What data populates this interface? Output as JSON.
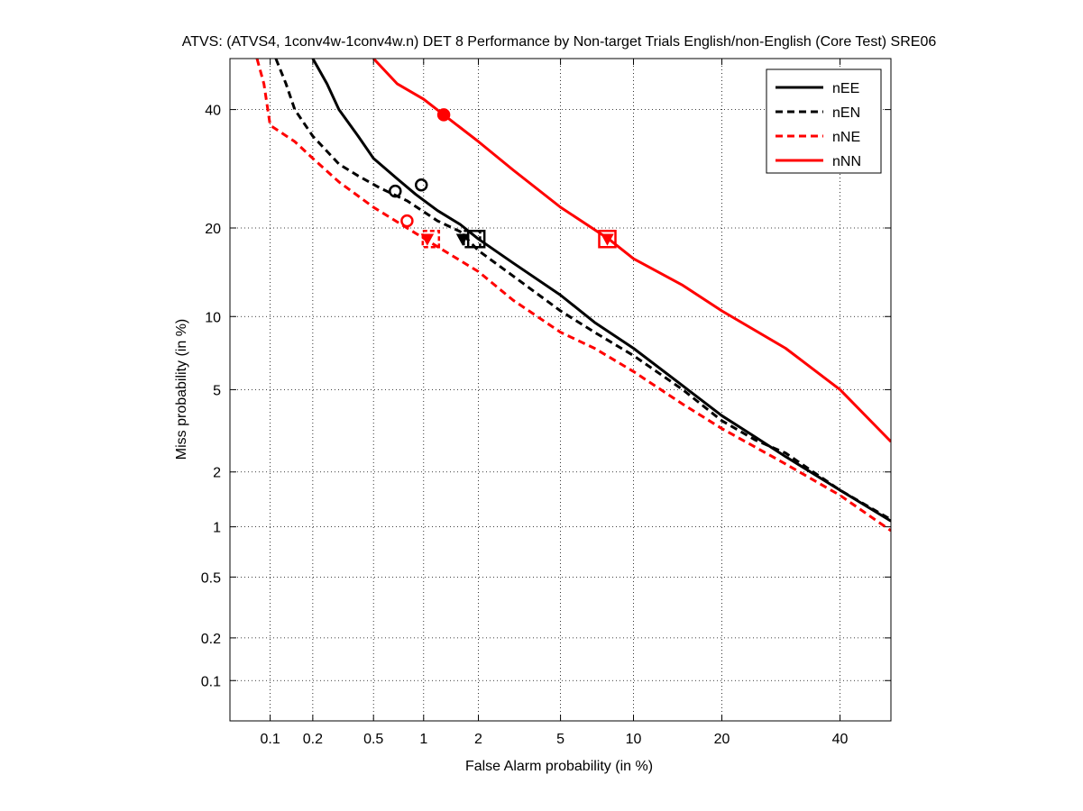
{
  "chart_data": {
    "type": "line",
    "scale": "probit",
    "title": "ATVS: (ATVS4, 1conv4w-1conv4w.n) DET 8 Performance by Non-target Trials English/non-English (Core Test) SRE06",
    "xlabel": "False Alarm probability (in %)",
    "ylabel": "Miss probability (in %)",
    "xlim": [
      0.05,
      50
    ],
    "ylim": [
      0.05,
      50
    ],
    "xticks": [
      0.1,
      0.2,
      0.5,
      1,
      2,
      5,
      10,
      20,
      40
    ],
    "xtick_labels": [
      "0.1",
      "0.2",
      "0.5",
      "1",
      "2",
      "5",
      "10",
      "20",
      "40"
    ],
    "yticks": [
      0.1,
      0.2,
      0.5,
      1,
      2,
      5,
      10,
      20,
      40
    ],
    "ytick_labels": [
      "0.1",
      "0.2",
      "0.5",
      "1",
      "2",
      "5",
      "10",
      "20",
      "40"
    ],
    "grid": true,
    "legend_position": "top-right",
    "series": [
      {
        "name": "nEE",
        "color": "#000000",
        "style": "solid",
        "points": [
          [
            0.2,
            50
          ],
          [
            0.25,
            45
          ],
          [
            0.3,
            40
          ],
          [
            0.4,
            35
          ],
          [
            0.5,
            31
          ],
          [
            0.7,
            27.5
          ],
          [
            0.9,
            25
          ],
          [
            1.2,
            22.5
          ],
          [
            1.6,
            20.5
          ],
          [
            2,
            18.5
          ],
          [
            3,
            15.5
          ],
          [
            5,
            12
          ],
          [
            7,
            9.5
          ],
          [
            10,
            7.5
          ],
          [
            15,
            5.2
          ],
          [
            20,
            3.8
          ],
          [
            25,
            3.0
          ],
          [
            30,
            2.4
          ],
          [
            40,
            1.6
          ],
          [
            50,
            1.08
          ]
        ],
        "markers": {
          "circle": [
            0.97,
            26.5
          ],
          "square": [
            1.95,
            18.5
          ]
        }
      },
      {
        "name": "nEN",
        "color": "#000000",
        "style": "dashed",
        "points": [
          [
            0.11,
            50
          ],
          [
            0.13,
            45
          ],
          [
            0.15,
            40
          ],
          [
            0.2,
            35
          ],
          [
            0.3,
            30
          ],
          [
            0.4,
            28
          ],
          [
            0.55,
            26
          ],
          [
            0.8,
            24
          ],
          [
            1.2,
            21
          ],
          [
            1.6,
            19.5
          ],
          [
            2,
            17
          ],
          [
            3,
            14
          ],
          [
            5,
            10.5
          ],
          [
            7,
            8.7
          ],
          [
            10,
            7
          ],
          [
            15,
            5
          ],
          [
            20,
            3.6
          ],
          [
            25,
            2.9
          ],
          [
            30,
            2.5
          ],
          [
            40,
            1.6
          ],
          [
            50,
            1.1
          ]
        ],
        "markers": {
          "circle": [
            0.68,
            25.5
          ],
          "triangle": [
            1.65,
            18.5
          ],
          "square": [
            1.85,
            18.5
          ]
        }
      },
      {
        "name": "nNE",
        "color": "#ff0000",
        "style": "dashed",
        "points": [
          [
            0.08,
            50
          ],
          [
            0.09,
            45
          ],
          [
            0.1,
            37
          ],
          [
            0.15,
            34
          ],
          [
            0.2,
            31
          ],
          [
            0.3,
            27
          ],
          [
            0.5,
            23
          ],
          [
            0.8,
            20
          ],
          [
            1.2,
            17.5
          ],
          [
            2,
            14.5
          ],
          [
            3,
            11.5
          ],
          [
            5,
            8.7
          ],
          [
            7,
            7.5
          ],
          [
            10,
            6
          ],
          [
            15,
            4.3
          ],
          [
            20,
            3.3
          ],
          [
            30,
            2.2
          ],
          [
            40,
            1.5
          ],
          [
            50,
            0.95
          ]
        ],
        "markers": {
          "circle": [
            0.8,
            21
          ],
          "triangle": [
            1.05,
            18.5
          ],
          "square": [
            1.1,
            18.5
          ]
        }
      },
      {
        "name": "nNN",
        "color": "#ff0000",
        "style": "solid",
        "points": [
          [
            0.5,
            50
          ],
          [
            0.7,
            45
          ],
          [
            1,
            42
          ],
          [
            1.3,
            39
          ],
          [
            2,
            34
          ],
          [
            3,
            29
          ],
          [
            5,
            23
          ],
          [
            8,
            18.5
          ],
          [
            10,
            16
          ],
          [
            15,
            13
          ],
          [
            20,
            10.5
          ],
          [
            30,
            7.5
          ],
          [
            40,
            5
          ],
          [
            50,
            2.85
          ]
        ],
        "markers": {
          "circle": [
            1.3,
            39
          ],
          "triangle": [
            7.9,
            18.5
          ],
          "square": [
            7.9,
            18.5
          ]
        }
      }
    ]
  }
}
